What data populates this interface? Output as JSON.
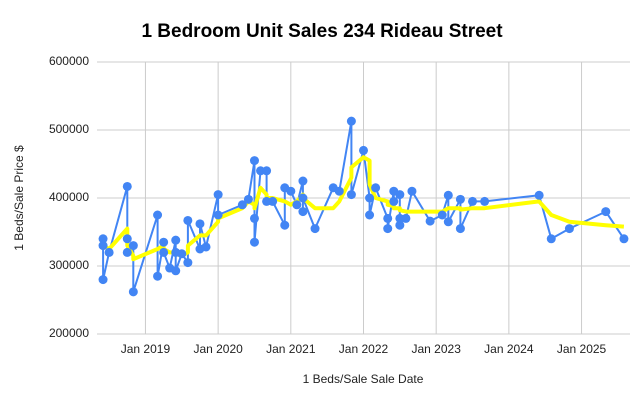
{
  "chart_data": {
    "type": "line",
    "title": "1 Bedroom Unit Sales 234 Rideau Street",
    "x_label": "1 Beds/Sale Sale Date",
    "y_label": "1 Beds/Sale Price $",
    "x": [
      "2018-06",
      "2018-06",
      "2018-06",
      "2018-07",
      "2018-10",
      "2018-10",
      "2018-10",
      "2018-11",
      "2018-11",
      "2019-03",
      "2019-03",
      "2019-04",
      "2019-04",
      "2019-05",
      "2019-06",
      "2019-06",
      "2019-06",
      "2019-07",
      "2019-08",
      "2019-08",
      "2019-10",
      "2019-10",
      "2019-11",
      "2020-01",
      "2020-01",
      "2020-05",
      "2020-06",
      "2020-07",
      "2020-07",
      "2020-07",
      "2020-08",
      "2020-09",
      "2020-09",
      "2020-10",
      "2020-12",
      "2020-12",
      "2021-01",
      "2021-02",
      "2021-03",
      "2021-03",
      "2021-03",
      "2021-05",
      "2021-08",
      "2021-09",
      "2021-11",
      "2021-11",
      "2022-01",
      "2022-02",
      "2022-02",
      "2022-03",
      "2022-05",
      "2022-05",
      "2022-06",
      "2022-06",
      "2022-07",
      "2022-07",
      "2022-07",
      "2022-08",
      "2022-09",
      "2022-12",
      "2023-02",
      "2023-03",
      "2023-03",
      "2023-05",
      "2023-05",
      "2023-07",
      "2023-09",
      "2024-06",
      "2024-08",
      "2024-11",
      "2025-05",
      "2025-08"
    ],
    "series": [
      {
        "color": "#4285f4",
        "markers": true,
        "values": [
          340000,
          330000,
          280000,
          320000,
          417000,
          340000,
          320000,
          330000,
          262000,
          375000,
          285000,
          335000,
          320000,
          297000,
          338000,
          320000,
          293000,
          318000,
          305000,
          367000,
          325000,
          362000,
          328000,
          405000,
          375000,
          390000,
          398000,
          455000,
          370000,
          335000,
          440000,
          440000,
          395000,
          395000,
          360000,
          415000,
          410000,
          390000,
          425000,
          380000,
          400000,
          355000,
          415000,
          410000,
          513000,
          405000,
          470000,
          400000,
          375000,
          415000,
          370000,
          355000,
          410000,
          395000,
          405000,
          360000,
          370000,
          370000,
          410000,
          366000,
          375000,
          404000,
          365000,
          398000,
          355000,
          395000,
          395000,
          404000,
          340000,
          355000,
          380000,
          340000
        ]
      },
      {
        "color": "#ffff00",
        "markers": false,
        "values": [
          335000,
          335000,
          330000,
          325000,
          355000,
          340000,
          330000,
          315000,
          310000,
          325000,
          325000,
          330000,
          325000,
          320000,
          320000,
          320000,
          318000,
          315000,
          320000,
          330000,
          345000,
          345000,
          345000,
          365000,
          370000,
          385000,
          395000,
          390000,
          385000,
          385000,
          415000,
          405000,
          400000,
          400000,
          395000,
          395000,
          390000,
          395000,
          405000,
          400000,
          400000,
          385000,
          385000,
          395000,
          430000,
          445000,
          460000,
          455000,
          420000,
          400000,
          395000,
          390000,
          388000,
          385000,
          385000,
          383000,
          382000,
          380000,
          380000,
          380000,
          380000,
          385000,
          385000,
          385000,
          383000,
          385000,
          385000,
          395000,
          375000,
          365000,
          360000,
          358000
        ]
      }
    ],
    "xlim": [
      "2018-05",
      "2025-09"
    ],
    "xticks": [
      {
        "value": "2019-01",
        "label": "Jan 2019"
      },
      {
        "value": "2020-01",
        "label": "Jan 2020"
      },
      {
        "value": "2021-01",
        "label": "Jan 2021"
      },
      {
        "value": "2022-01",
        "label": "Jan 2022"
      },
      {
        "value": "2023-01",
        "label": "Jan 2023"
      },
      {
        "value": "2024-01",
        "label": "Jan 2024"
      },
      {
        "value": "2025-01",
        "label": "Jan 2025"
      }
    ],
    "ylim": [
      200000,
      600000
    ],
    "yticks": [
      200000,
      300000,
      400000,
      500000,
      600000
    ],
    "grid": true
  }
}
